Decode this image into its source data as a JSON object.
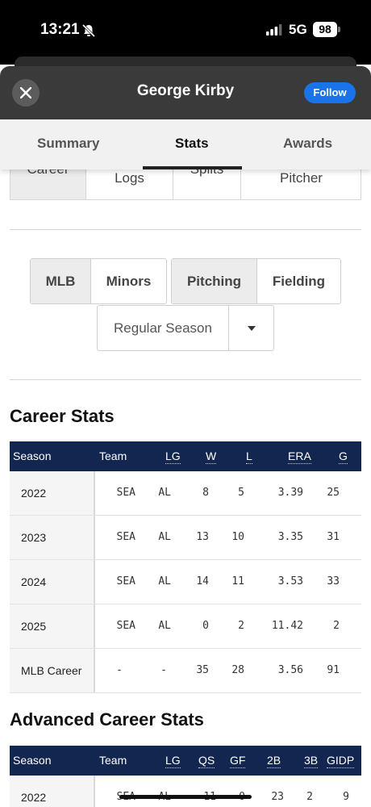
{
  "status_bar": {
    "time": "13:21",
    "network": "5G",
    "battery": "98"
  },
  "header": {
    "title": "George Kirby",
    "follow_label": "Follow"
  },
  "tabs": [
    {
      "label": "Summary"
    },
    {
      "label": "Stats"
    },
    {
      "label": "Awards"
    }
  ],
  "subnav": {
    "career": "Career",
    "game_logs": "Logs",
    "splits": "Splits",
    "pitcher": "Pitcher"
  },
  "filters": {
    "level": [
      "MLB",
      "Minors"
    ],
    "type": [
      "Pitching",
      "Fielding"
    ],
    "season_type": "Regular Season"
  },
  "career_stats": {
    "title": "Career Stats",
    "headers": [
      "Season",
      "Team",
      "LG",
      "W",
      "L",
      "ERA",
      "G"
    ],
    "rows": [
      [
        "2022",
        "SEA",
        "AL",
        "8",
        "5",
        "3.39",
        "25"
      ],
      [
        "2023",
        "SEA",
        "AL",
        "13",
        "10",
        "3.35",
        "31"
      ],
      [
        "2024",
        "SEA",
        "AL",
        "14",
        "11",
        "3.53",
        "33"
      ],
      [
        "2025",
        "SEA",
        "AL",
        "0",
        "2",
        "11.42",
        "2"
      ],
      [
        "MLB Career",
        "-",
        "-",
        "35",
        "28",
        "3.56",
        "91"
      ]
    ]
  },
  "advanced_stats": {
    "title": "Advanced Career Stats",
    "headers": [
      "Season",
      "Team",
      "LG",
      "QS",
      "GF",
      "2B",
      "3B",
      "GIDP"
    ],
    "rows": [
      [
        "2022",
        "SEA",
        "AL",
        "11",
        "0",
        "23",
        "2",
        "9"
      ]
    ]
  }
}
